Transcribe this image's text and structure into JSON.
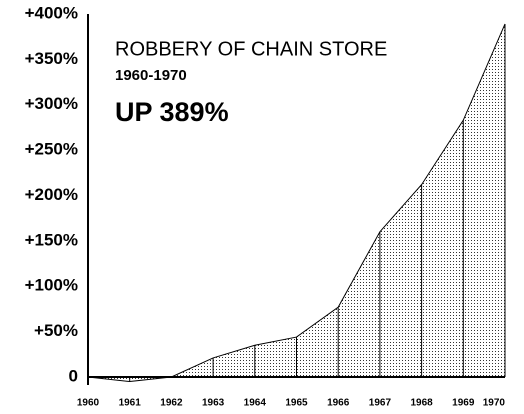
{
  "chart_data": {
    "type": "area",
    "title": "ROBBERY OF CHAIN STORE",
    "subtitle": "1960-1970",
    "annotation": "UP 389%",
    "categories": [
      "1960",
      "1961",
      "1962",
      "1963",
      "1964",
      "1965",
      "1966",
      "1967",
      "1968",
      "1969",
      "1970"
    ],
    "values": [
      0,
      -5,
      0,
      21,
      35,
      44,
      77,
      160,
      212,
      283,
      389
    ],
    "color": "#000000",
    "ylim": [
      0,
      400
    ],
    "yticks": [
      0,
      {
        "value": 50,
        "label": "+50%"
      },
      {
        "value": 100,
        "label": "+100%"
      },
      {
        "value": 150,
        "label": "+150%"
      },
      {
        "value": 200,
        "label": "+200%"
      },
      {
        "value": 250,
        "label": "+250%"
      },
      {
        "value": 300,
        "label": "+300%"
      },
      {
        "value": 350,
        "label": "+350%"
      },
      {
        "value": 400,
        "label": "+400%"
      }
    ]
  }
}
